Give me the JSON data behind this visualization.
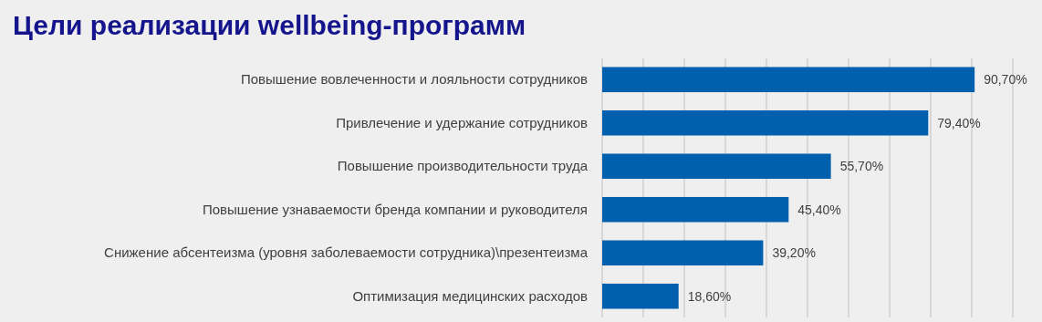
{
  "chart_data": {
    "type": "bar",
    "orientation": "horizontal",
    "title": "Цели реализации wellbeing-программ",
    "categories": [
      "Повышение вовлеченности и лояльности сотрудников",
      "Привлечение и удержание сотрудников",
      "Повышение производительности труда",
      "Повышение узнаваемости бренда компании и руководителя",
      "Снижение абсентеизма (уровня заболеваемости сотрудника)\\презентеизма",
      "Оптимизация медицинских расходов"
    ],
    "values": [
      90.7,
      79.4,
      55.7,
      45.4,
      39.2,
      18.6
    ],
    "value_labels": [
      "90,70%",
      "79,40%",
      "55,70%",
      "45,40%",
      "39,20%",
      "18,60%"
    ],
    "color": "#0060ae",
    "xlim": [
      0,
      100
    ],
    "xticks": [
      {
        "value": 0,
        "label": null
      },
      {
        "value": 10,
        "label": null
      },
      {
        "value": 20,
        "label": null
      },
      {
        "value": 30,
        "label": null
      },
      {
        "value": 40,
        "label": null
      },
      {
        "value": 50,
        "label": null
      },
      {
        "value": 60,
        "label": null
      },
      {
        "value": 70,
        "label": null
      },
      {
        "value": 80,
        "label": null
      },
      {
        "value": 90,
        "label": null
      },
      {
        "value": 100,
        "label": null
      }
    ],
    "grid": "x",
    "tick_labels": "y"
  }
}
